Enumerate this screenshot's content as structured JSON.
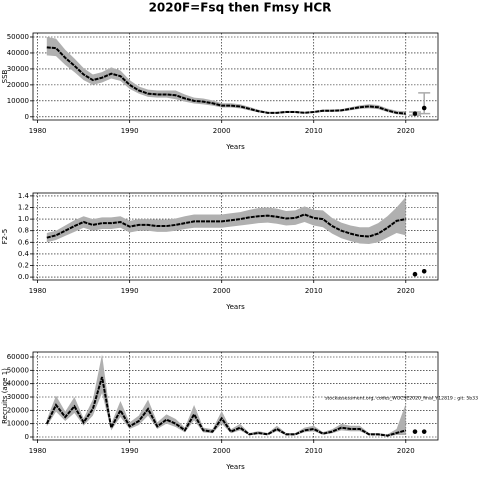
{
  "title": "2020F=Fsq then Fmsy HCR",
  "chart_data": [
    {
      "type": "line",
      "ylabel": "SSB",
      "xlabel": "Years",
      "xlim": [
        1979.5,
        2023.5
      ],
      "xticks": [
        1980,
        1990,
        2000,
        2010,
        2020
      ],
      "ylim": [
        -2000,
        52500
      ],
      "yticks": [
        0,
        10000,
        20000,
        30000,
        40000,
        50000
      ],
      "grid": true,
      "x": [
        1981,
        1982,
        1983,
        1984,
        1985,
        1986,
        1987,
        1988,
        1989,
        1990,
        1991,
        1992,
        1993,
        1994,
        1995,
        1996,
        1997,
        1998,
        1999,
        2000,
        2001,
        2002,
        2003,
        2004,
        2005,
        2006,
        2007,
        2008,
        2009,
        2010,
        2011,
        2012,
        2013,
        2014,
        2015,
        2016,
        2017,
        2018,
        2019,
        2020
      ],
      "values": [
        43500,
        43000,
        37000,
        32000,
        26500,
        23000,
        24500,
        27000,
        25500,
        20000,
        16500,
        14500,
        14000,
        14000,
        13500,
        11500,
        10000,
        9500,
        8500,
        7000,
        7000,
        6500,
        5000,
        3500,
        2500,
        2500,
        3000,
        3000,
        2500,
        3000,
        3800,
        3800,
        4000,
        5000,
        6000,
        6500,
        6000,
        4000,
        2500,
        2000
      ],
      "lower": [
        38500,
        38000,
        32500,
        28000,
        23000,
        20000,
        21500,
        24000,
        22500,
        17500,
        14500,
        12500,
        12000,
        12000,
        11000,
        9500,
        8300,
        7800,
        7000,
        5800,
        5800,
        5300,
        4000,
        2800,
        2000,
        2000,
        2400,
        2400,
        2000,
        2400,
        3100,
        3100,
        3300,
        4100,
        5000,
        5300,
        4800,
        3000,
        1600,
        1000
      ],
      "upper": [
        50000,
        49000,
        42000,
        36500,
        30500,
        26500,
        28000,
        31000,
        29000,
        23000,
        19000,
        17000,
        16500,
        16500,
        16500,
        14000,
        12000,
        11500,
        10300,
        8500,
        8500,
        7900,
        6200,
        4400,
        3100,
        3100,
        3700,
        3700,
        3100,
        3700,
        4600,
        4600,
        4800,
        6000,
        7200,
        7900,
        7400,
        5200,
        3800,
        3500
      ],
      "forecast": {
        "x": [
          2021,
          2022
        ],
        "values": [
          2000,
          5500
        ],
        "lower": [
          1000,
          2000
        ],
        "upper": [
          3000,
          15000
        ]
      },
      "color": "#000000",
      "band_color": "#b0b0b0"
    },
    {
      "type": "line",
      "ylabel": "F2-5",
      "xlabel": "Years",
      "xlim": [
        1979.5,
        2023.5
      ],
      "xticks": [
        1980,
        1990,
        2000,
        2010,
        2020
      ],
      "ylim": [
        -0.05,
        1.45
      ],
      "yticks": [
        {
          "value": 0,
          "label": "0.0"
        },
        0.2,
        0.4,
        0.6,
        0.8,
        {
          "value": 1,
          "label": "1.0"
        },
        1.2,
        1.4
      ],
      "grid": true,
      "x": [
        1981,
        1982,
        1983,
        1984,
        1985,
        1986,
        1987,
        1988,
        1989,
        1990,
        1991,
        1992,
        1993,
        1994,
        1995,
        1996,
        1997,
        1998,
        1999,
        2000,
        2001,
        2002,
        2003,
        2004,
        2005,
        2006,
        2007,
        2008,
        2009,
        2010,
        2011,
        2012,
        2013,
        2014,
        2015,
        2016,
        2017,
        2018,
        2019,
        2020
      ],
      "values": [
        0.68,
        0.72,
        0.8,
        0.88,
        0.95,
        0.9,
        0.93,
        0.93,
        0.95,
        0.87,
        0.9,
        0.9,
        0.88,
        0.88,
        0.9,
        0.93,
        0.96,
        0.96,
        0.96,
        0.96,
        0.98,
        1.0,
        1.03,
        1.05,
        1.06,
        1.04,
        1.01,
        1.02,
        1.08,
        1.02,
        1.0,
        0.88,
        0.8,
        0.75,
        0.71,
        0.7,
        0.75,
        0.85,
        0.97,
        1.0
      ],
      "lower": [
        0.6,
        0.64,
        0.71,
        0.78,
        0.85,
        0.8,
        0.83,
        0.83,
        0.85,
        0.77,
        0.8,
        0.8,
        0.78,
        0.78,
        0.8,
        0.83,
        0.85,
        0.85,
        0.85,
        0.85,
        0.87,
        0.89,
        0.91,
        0.93,
        0.94,
        0.92,
        0.89,
        0.9,
        0.95,
        0.89,
        0.86,
        0.75,
        0.67,
        0.62,
        0.58,
        0.57,
        0.6,
        0.68,
        0.76,
        0.72
      ],
      "upper": [
        0.76,
        0.8,
        0.89,
        0.98,
        1.05,
        1.0,
        1.03,
        1.03,
        1.05,
        0.97,
        1.0,
        1.0,
        0.99,
        0.99,
        1.01,
        1.05,
        1.08,
        1.08,
        1.08,
        1.08,
        1.1,
        1.12,
        1.16,
        1.19,
        1.2,
        1.18,
        1.14,
        1.15,
        1.22,
        1.16,
        1.15,
        1.02,
        0.94,
        0.89,
        0.86,
        0.86,
        0.93,
        1.05,
        1.2,
        1.38
      ],
      "forecast": {
        "x": [
          2021,
          2022
        ],
        "values": [
          0.05,
          0.1
        ]
      },
      "color": "#000000",
      "band_color": "#b0b0b0"
    },
    {
      "type": "line",
      "ylabel": "Recruits (age 1)",
      "xlabel": "Years",
      "annotation": "stockassessment.org, codes_WGCSE2020_final_Y12819 ; git: 5b33",
      "xlim": [
        1979.5,
        2023.5
      ],
      "xticks": [
        1980,
        1990,
        2000,
        2010,
        2020
      ],
      "ylim": [
        -2250,
        63750
      ],
      "yticks": [
        0,
        10000,
        20000,
        30000,
        40000,
        50000,
        60000
      ],
      "grid": true,
      "x": [
        1981,
        1982,
        1983,
        1984,
        1985,
        1986,
        1987,
        1988,
        1989,
        1990,
        1991,
        1992,
        1993,
        1994,
        1995,
        1996,
        1997,
        1998,
        1999,
        2000,
        2001,
        2002,
        2003,
        2004,
        2005,
        2006,
        2007,
        2008,
        2009,
        2010,
        2011,
        2012,
        2013,
        2014,
        2015,
        2016,
        2017,
        2018,
        2019,
        2020
      ],
      "values": [
        10000,
        24000,
        15000,
        23000,
        11000,
        21000,
        45000,
        7000,
        20000,
        8000,
        12000,
        21000,
        8000,
        13000,
        10000,
        5000,
        17000,
        5000,
        4000,
        14000,
        4000,
        7000,
        2000,
        3000,
        2000,
        6000,
        2000,
        2000,
        5000,
        6000,
        2500,
        4000,
        7000,
        6000,
        6000,
        2000,
        2000,
        1000,
        3000,
        5000
      ],
      "lower": [
        8000,
        19000,
        12000,
        18000,
        8500,
        16000,
        33000,
        5000,
        15000,
        6000,
        9000,
        16000,
        6000,
        10000,
        7500,
        3500,
        12500,
        3500,
        2800,
        10000,
        2800,
        5000,
        1300,
        2000,
        1300,
        4300,
        1300,
        1300,
        3600,
        4300,
        1700,
        2800,
        5000,
        4300,
        4300,
        1300,
        1200,
        500,
        1500,
        1500
      ],
      "upper": [
        13000,
        31000,
        19000,
        30000,
        14000,
        28000,
        62000,
        10000,
        27000,
        11000,
        16000,
        28000,
        11000,
        17000,
        13500,
        7000,
        24000,
        7000,
        5800,
        19500,
        5800,
        9800,
        3000,
        4400,
        3000,
        8400,
        3000,
        3000,
        7000,
        8400,
        3700,
        5800,
        9800,
        8400,
        8400,
        3000,
        3000,
        2000,
        6000,
        25000
      ],
      "forecast": {
        "x": [
          2021,
          2022
        ],
        "values": [
          4000,
          4000
        ]
      },
      "color": "#000000",
      "band_color": "#b0b0b0"
    }
  ]
}
